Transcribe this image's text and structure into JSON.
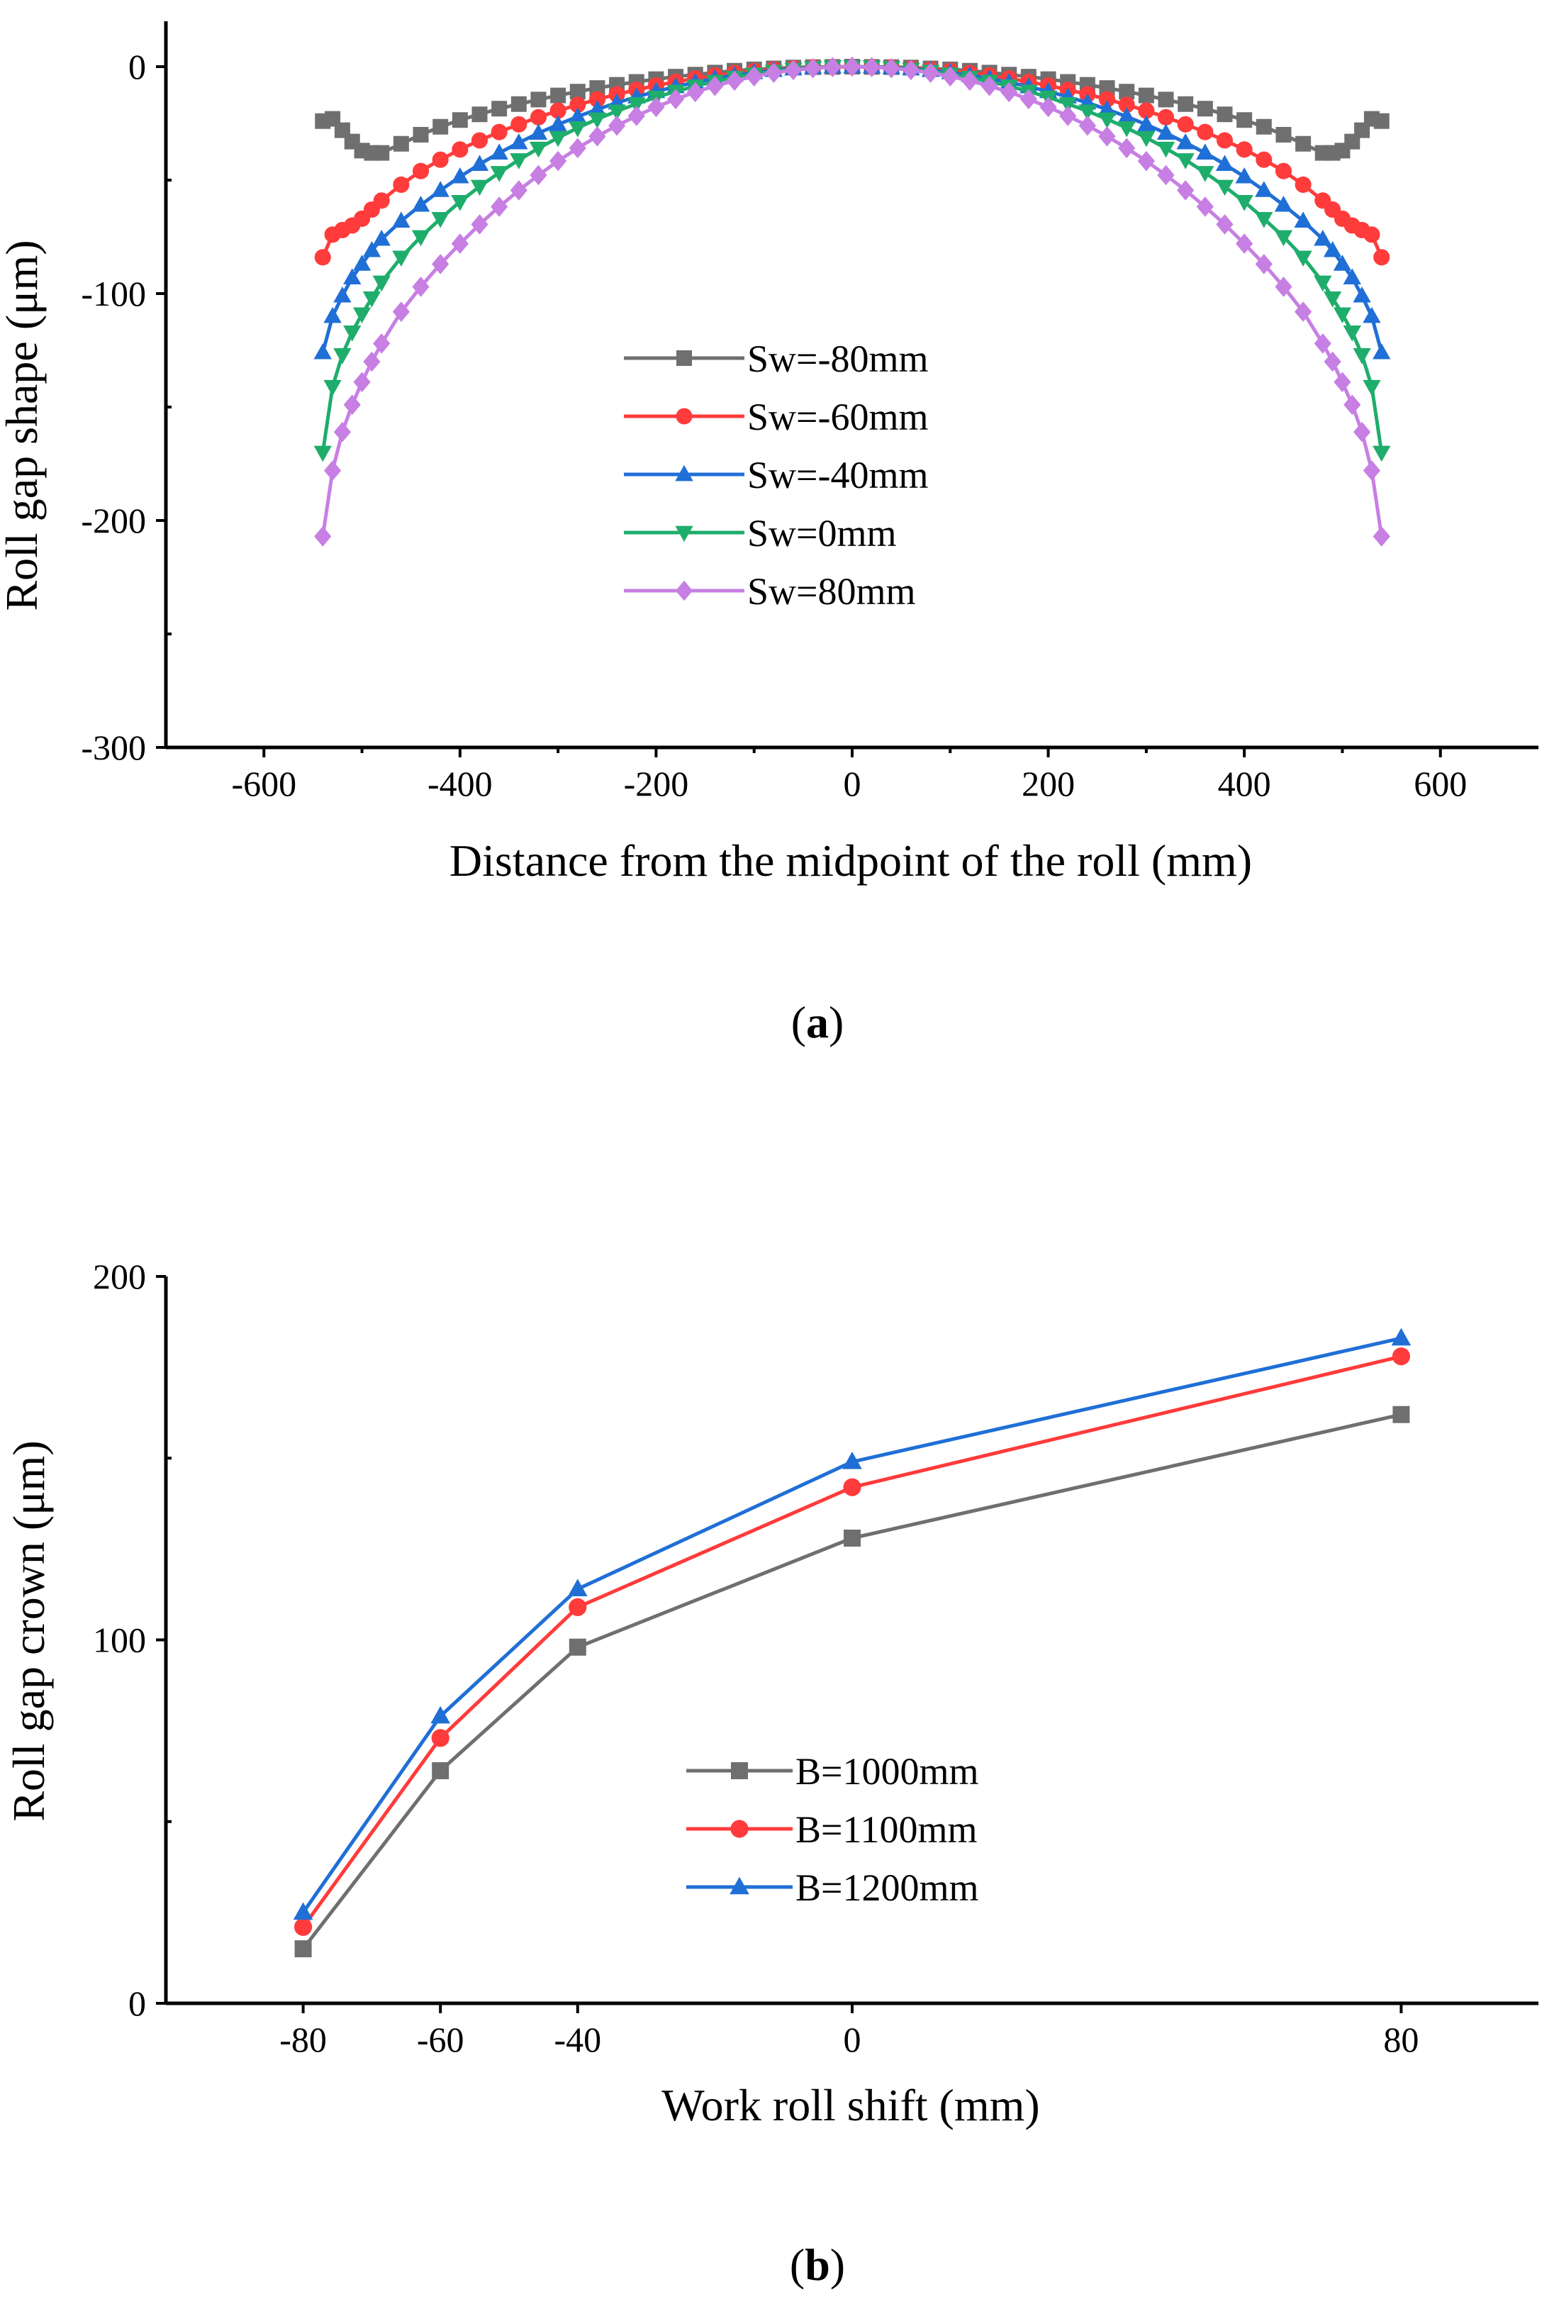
{
  "chart_data": [
    {
      "type": "line",
      "panel_label": "a",
      "xlabel": "Distance from the midpoint of the roll (mm)",
      "ylabel": "Roll gap shape (μm)",
      "xlim": [
        -700,
        700
      ],
      "ylim": [
        -300,
        20
      ],
      "xticks": [
        -600,
        -400,
        -200,
        0,
        200,
        400,
        600
      ],
      "xtick_labels": [
        "-600",
        "-400",
        "-200",
        "0",
        "200",
        "400",
        "600"
      ],
      "yticks": [
        -300,
        -200,
        -100,
        0
      ],
      "ytick_labels": [
        "-300",
        "-200",
        "-100",
        "0"
      ],
      "legend_position": "center",
      "series": [
        {
          "name": "Sw=-80mm",
          "color": "#6f6f6f",
          "marker": "square",
          "x": [
            -540,
            -530,
            -520,
            -510,
            -500,
            -490,
            -480,
            -460,
            -440,
            -420,
            -400,
            -380,
            -360,
            -340,
            -320,
            -300,
            -280,
            -260,
            -240,
            -220,
            -200,
            -180,
            -160,
            -140,
            -120,
            -100,
            -80,
            -60,
            -40,
            -20,
            0,
            20,
            40,
            60,
            80,
            100,
            120,
            140,
            160,
            180,
            200,
            220,
            240,
            260,
            280,
            300,
            320,
            340,
            360,
            380,
            400,
            420,
            440,
            460,
            480,
            490,
            500,
            510,
            520,
            530,
            540
          ],
          "y": [
            -24,
            -23,
            -28,
            -33,
            -37,
            -38,
            -38,
            -34,
            -30,
            -26.5,
            -23.5,
            -21,
            -18.5,
            -16.5,
            -14.5,
            -12.7,
            -11,
            -9.4,
            -8,
            -6.7,
            -5.5,
            -4.4,
            -3.5,
            -2.6,
            -1.8,
            -1.2,
            -0.8,
            -0.4,
            -0.2,
            -0.1,
            0,
            -0.1,
            -0.2,
            -0.4,
            -0.8,
            -1.2,
            -1.8,
            -2.6,
            -3.5,
            -4.4,
            -5.5,
            -6.7,
            -8,
            -9.4,
            -11,
            -12.7,
            -14.5,
            -16.5,
            -18.5,
            -21,
            -23.5,
            -26.5,
            -30,
            -34,
            -38,
            -38,
            -37,
            -33,
            -28,
            -23,
            -24
          ]
        },
        {
          "name": "Sw=-60mm",
          "color": "#ff3b3b",
          "marker": "circle",
          "x": [
            -540,
            -530,
            -520,
            -510,
            -500,
            -490,
            -480,
            -460,
            -440,
            -420,
            -400,
            -380,
            -360,
            -340,
            -320,
            -300,
            -280,
            -260,
            -240,
            -220,
            -200,
            -180,
            -160,
            -140,
            -120,
            -100,
            -80,
            -60,
            -40,
            -20,
            0,
            20,
            40,
            60,
            80,
            100,
            120,
            140,
            160,
            180,
            200,
            220,
            240,
            260,
            280,
            300,
            320,
            340,
            360,
            380,
            400,
            420,
            440,
            460,
            480,
            490,
            500,
            510,
            520,
            530,
            540
          ],
          "y": [
            -84,
            -74,
            -72,
            -70,
            -67,
            -63,
            -59,
            -52,
            -46,
            -41,
            -36.5,
            -32.5,
            -28.8,
            -25.4,
            -22.3,
            -19.4,
            -16.8,
            -14.4,
            -12.2,
            -10.2,
            -8.3,
            -6.7,
            -5.2,
            -3.9,
            -2.8,
            -1.9,
            -1.2,
            -0.7,
            -0.3,
            -0.1,
            0,
            -0.1,
            -0.3,
            -0.7,
            -1.2,
            -1.9,
            -2.8,
            -3.9,
            -5.2,
            -6.7,
            -8.3,
            -10.2,
            -12.2,
            -14.4,
            -16.8,
            -19.4,
            -22.3,
            -25.4,
            -28.8,
            -32.5,
            -36.5,
            -41,
            -46,
            -52,
            -59,
            -63,
            -67,
            -70,
            -72,
            -74,
            -84
          ]
        },
        {
          "name": "Sw=-40mm",
          "color": "#1f6fd6",
          "marker": "triangle-up",
          "x": [
            -540,
            -530,
            -520,
            -510,
            -500,
            -490,
            -480,
            -460,
            -440,
            -420,
            -400,
            -380,
            -360,
            -340,
            -320,
            -300,
            -280,
            -260,
            -240,
            -220,
            -200,
            -180,
            -160,
            -140,
            -120,
            -100,
            -80,
            -60,
            -40,
            -20,
            0,
            20,
            40,
            60,
            80,
            100,
            120,
            140,
            160,
            180,
            200,
            220,
            240,
            260,
            280,
            300,
            320,
            340,
            360,
            380,
            400,
            420,
            440,
            460,
            480,
            490,
            500,
            510,
            520,
            530,
            540
          ],
          "y": [
            -126,
            -110,
            -101,
            -93,
            -87,
            -81,
            -76,
            -68,
            -61,
            -54.5,
            -48.5,
            -43,
            -38,
            -33.5,
            -29.3,
            -25.5,
            -22,
            -18.8,
            -15.9,
            -13.3,
            -10.9,
            -8.8,
            -6.9,
            -5.2,
            -3.8,
            -2.6,
            -1.6,
            -0.9,
            -0.4,
            -0.1,
            0,
            -0.1,
            -0.4,
            -0.9,
            -1.6,
            -2.6,
            -3.8,
            -5.2,
            -6.9,
            -8.8,
            -10.9,
            -13.3,
            -15.9,
            -18.8,
            -22,
            -25.5,
            -29.3,
            -33.5,
            -38,
            -43,
            -48.5,
            -54.5,
            -61,
            -68,
            -76,
            -81,
            -87,
            -93,
            -101,
            -110,
            -126
          ]
        },
        {
          "name": "Sw=0mm",
          "color": "#1fad6b",
          "marker": "triangle-down",
          "x": [
            -540,
            -530,
            -520,
            -510,
            -500,
            -490,
            -480,
            -460,
            -440,
            -420,
            -400,
            -380,
            -360,
            -340,
            -320,
            -300,
            -280,
            -260,
            -240,
            -220,
            -200,
            -180,
            -160,
            -140,
            -120,
            -100,
            -80,
            -60,
            -40,
            -20,
            0,
            20,
            40,
            60,
            80,
            100,
            120,
            140,
            160,
            180,
            200,
            220,
            240,
            260,
            280,
            300,
            320,
            340,
            360,
            380,
            400,
            420,
            440,
            460,
            480,
            490,
            500,
            510,
            520,
            530,
            540
          ],
          "y": [
            -170,
            -141,
            -127,
            -117,
            -109,
            -102,
            -95,
            -84,
            -75,
            -67,
            -59.5,
            -52.8,
            -46.7,
            -41.1,
            -36,
            -31.3,
            -27,
            -23.1,
            -19.6,
            -16.4,
            -13.5,
            -10.9,
            -8.6,
            -6.5,
            -4.8,
            -3.3,
            -2.1,
            -1.2,
            -0.5,
            -0.1,
            0,
            -0.1,
            -0.5,
            -1.2,
            -2.1,
            -3.3,
            -4.8,
            -6.5,
            -8.6,
            -10.9,
            -13.5,
            -16.4,
            -19.6,
            -23.1,
            -27,
            -31.3,
            -36,
            -41.1,
            -46.7,
            -52.8,
            -59.5,
            -67,
            -75,
            -84,
            -95,
            -102,
            -109,
            -117,
            -127,
            -141,
            -170
          ]
        },
        {
          "name": "Sw=80mm",
          "color": "#c77fe3",
          "marker": "diamond",
          "x": [
            -540,
            -530,
            -520,
            -510,
            -500,
            -490,
            -480,
            -460,
            -440,
            -420,
            -400,
            -380,
            -360,
            -340,
            -320,
            -300,
            -280,
            -260,
            -240,
            -220,
            -200,
            -180,
            -160,
            -140,
            -120,
            -100,
            -80,
            -60,
            -40,
            -20,
            0,
            20,
            40,
            60,
            80,
            100,
            120,
            140,
            160,
            180,
            200,
            220,
            240,
            260,
            280,
            300,
            320,
            340,
            360,
            380,
            400,
            420,
            440,
            460,
            480,
            490,
            500,
            510,
            520,
            530,
            540
          ],
          "y": [
            -207,
            -178,
            -161,
            -149,
            -139,
            -130,
            -122,
            -108,
            -97,
            -87,
            -78,
            -69.5,
            -61.7,
            -54.5,
            -47.8,
            -41.6,
            -35.9,
            -30.7,
            -26,
            -21.7,
            -17.8,
            -14.3,
            -11.2,
            -8.5,
            -6.2,
            -4.3,
            -2.7,
            -1.5,
            -0.7,
            -0.2,
            0,
            -0.2,
            -0.7,
            -1.5,
            -2.7,
            -4.3,
            -6.2,
            -8.5,
            -11.2,
            -14.3,
            -17.8,
            -21.7,
            -26,
            -30.7,
            -35.9,
            -41.6,
            -47.8,
            -54.5,
            -61.7,
            -69.5,
            -78,
            -87,
            -97,
            -108,
            -122,
            -130,
            -139,
            -149,
            -161,
            -178,
            -207
          ]
        }
      ]
    },
    {
      "type": "line",
      "panel_label": "b",
      "xlabel": "Work roll shift (mm)",
      "ylabel": "Roll gap crown (μm)",
      "xlim": [
        -100,
        100
      ],
      "ylim": [
        0,
        200
      ],
      "xticks": [
        -80,
        -60,
        -40,
        0,
        80
      ],
      "xtick_labels": [
        "-80",
        "-60",
        "-40",
        "0",
        "80"
      ],
      "yticks": [
        0,
        100,
        200
      ],
      "ytick_labels": [
        "0",
        "100",
        "200"
      ],
      "legend_position": "bottom-center",
      "series": [
        {
          "name": "B=1000mm",
          "color": "#6f6f6f",
          "marker": "square",
          "x": [
            -80,
            -60,
            -40,
            0,
            80
          ],
          "y": [
            15,
            64,
            98,
            128,
            162
          ]
        },
        {
          "name": "B=1100mm",
          "color": "#ff3b3b",
          "marker": "circle",
          "x": [
            -80,
            -60,
            -40,
            0,
            80
          ],
          "y": [
            21,
            73,
            109,
            142,
            178
          ]
        },
        {
          "name": "B=1200mm",
          "color": "#1f6fd6",
          "marker": "triangle-up",
          "x": [
            -80,
            -60,
            -40,
            0,
            80
          ],
          "y": [
            25,
            79,
            114,
            149,
            183
          ]
        }
      ]
    }
  ],
  "captions": {
    "a": "a",
    "b": "b"
  }
}
